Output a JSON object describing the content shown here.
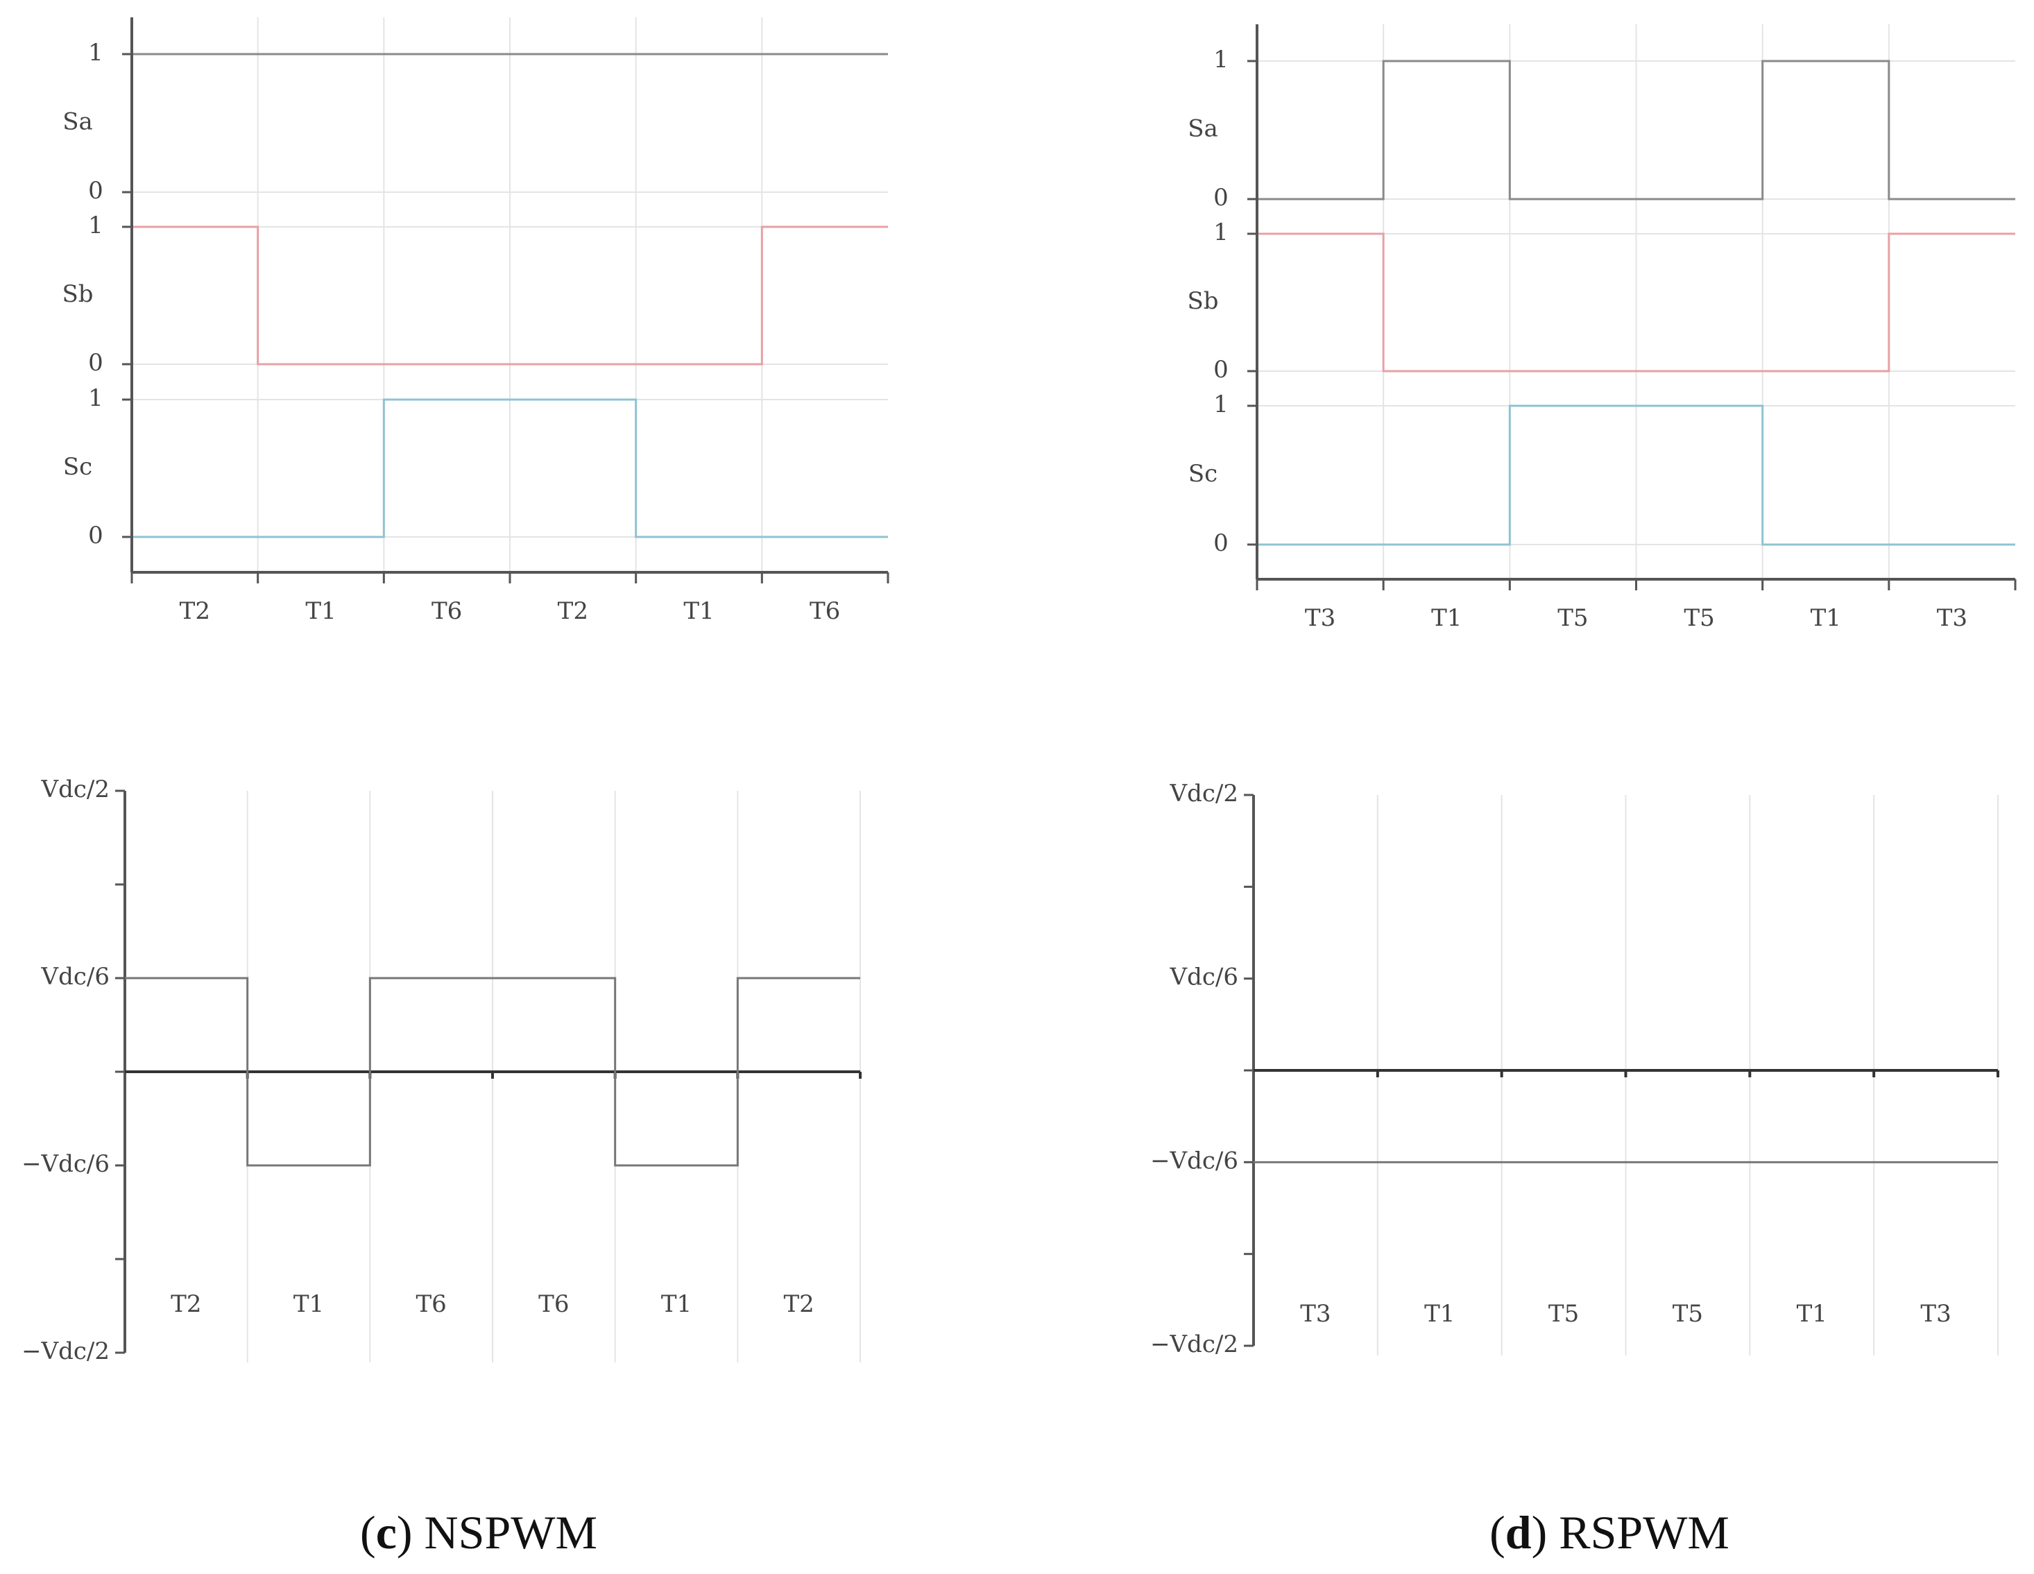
{
  "colors": {
    "axis": "#555555",
    "grid": "#e4e4e4",
    "sa_trace": "#8a8a8a",
    "sb_trace": "#e8a0a6",
    "sc_trace": "#8fc3d2",
    "voltage_trace": "#777777",
    "text": "#444444"
  },
  "captions": {
    "left": {
      "open": "(",
      "letter": "c",
      "close": ")",
      "text": " NSPWM"
    },
    "right": {
      "open": "(",
      "letter": "d",
      "close": ")",
      "text": " RSPWM"
    }
  },
  "chart_data": [
    {
      "id": "nspwm-switching",
      "type": "line",
      "step": true,
      "x_intervals": [
        "T2",
        "T1",
        "T6",
        "T2",
        "T1",
        "T6"
      ],
      "series": [
        {
          "name": "Sa",
          "ytick_labels": [
            "1",
            "0"
          ],
          "values": [
            1,
            1,
            1,
            1,
            1,
            1
          ]
        },
        {
          "name": "Sb",
          "ytick_labels": [
            "1",
            "0"
          ],
          "values": [
            1,
            0,
            0,
            0,
            0,
            1
          ]
        },
        {
          "name": "Sc",
          "ytick_labels": [
            "1",
            "0"
          ],
          "values": [
            0,
            0,
            1,
            1,
            0,
            0
          ]
        }
      ],
      "ylim": [
        0,
        1
      ],
      "grid": true
    },
    {
      "id": "rspwm-switching",
      "type": "line",
      "step": true,
      "x_intervals": [
        "T3",
        "T1",
        "T5",
        "T5",
        "T1",
        "T3"
      ],
      "series": [
        {
          "name": "Sa",
          "ytick_labels": [
            "1",
            "0"
          ],
          "values": [
            0,
            1,
            0,
            0,
            1,
            0
          ]
        },
        {
          "name": "Sb",
          "ytick_labels": [
            "1",
            "0"
          ],
          "values": [
            1,
            0,
            0,
            0,
            0,
            1
          ]
        },
        {
          "name": "Sc",
          "ytick_labels": [
            "1",
            "0"
          ],
          "values": [
            0,
            0,
            1,
            1,
            0,
            0
          ]
        }
      ],
      "ylim": [
        0,
        1
      ],
      "grid": true
    },
    {
      "id": "nspwm-voltage",
      "type": "line",
      "step": true,
      "x_intervals": [
        "T2",
        "T1",
        "T6",
        "T6",
        "T1",
        "T2"
      ],
      "yticks": [
        {
          "label": "Vdc/2",
          "value": 0.5
        },
        {
          "label": "Vdc/6",
          "value": 0.16667
        },
        {
          "label": "−Vdc/6",
          "value": -0.16667
        },
        {
          "label": "−Vdc/2",
          "value": -0.5
        }
      ],
      "series": [
        {
          "values": [
            0.16667,
            -0.16667,
            0.16667,
            0.16667,
            -0.16667,
            0.16667
          ]
        }
      ],
      "ylim": [
        -0.5,
        0.5
      ],
      "grid": true
    },
    {
      "id": "rspwm-voltage",
      "type": "line",
      "step": true,
      "x_intervals": [
        "T3",
        "T1",
        "T5",
        "T5",
        "T1",
        "T3"
      ],
      "yticks": [
        {
          "label": "Vdc/2",
          "value": 0.5
        },
        {
          "label": "Vdc/6",
          "value": 0.16667
        },
        {
          "label": "−Vdc/6",
          "value": -0.16667
        },
        {
          "label": "−Vdc/2",
          "value": -0.5
        }
      ],
      "series": [
        {
          "values": [
            -0.16667,
            -0.16667,
            -0.16667,
            -0.16667,
            -0.16667,
            -0.16667
          ]
        }
      ],
      "ylim": [
        -0.5,
        0.5
      ],
      "grid": true
    }
  ]
}
